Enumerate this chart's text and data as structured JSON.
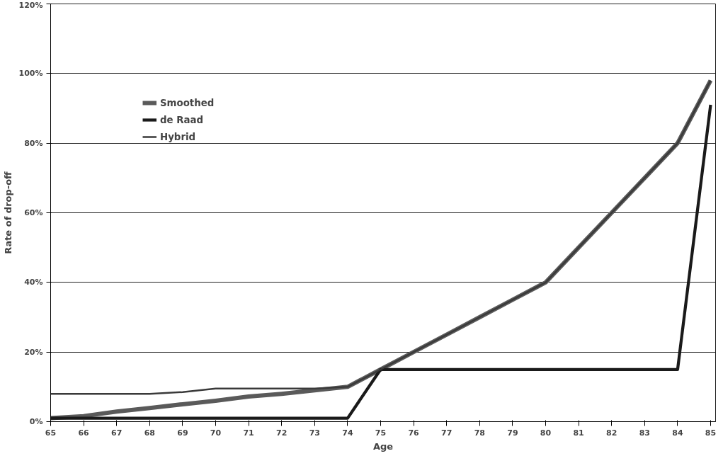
{
  "chart_data": {
    "type": "line",
    "xlabel": "Age",
    "ylabel": "Rate of drop-off",
    "categories": [
      "65",
      "66",
      "67",
      "68",
      "69",
      "70",
      "71",
      "72",
      "73",
      "74",
      "75",
      "76",
      "77",
      "78",
      "79",
      "80",
      "81",
      "82",
      "83",
      "84",
      "85"
    ],
    "series": [
      {
        "name": "Smoothed",
        "color": "#5a5a5a",
        "values": [
          1,
          1.6,
          2.9,
          3.9,
          5,
          6,
          7.2,
          8,
          9,
          10,
          15,
          20,
          25,
          30,
          35,
          40,
          50,
          60,
          70,
          80,
          98
        ]
      },
      {
        "name": "de Raad",
        "color": "#1a1a1a",
        "values": [
          1,
          1,
          1,
          1,
          1,
          1,
          1,
          1,
          1,
          1,
          15,
          15,
          15,
          15,
          15,
          15,
          15,
          15,
          15,
          15,
          91
        ]
      },
      {
        "name": "Hybrid",
        "color": "#3a3a3a",
        "values": [
          8,
          8,
          8,
          8,
          8.5,
          9.5,
          9.5,
          9.5,
          9.5,
          10,
          15,
          20,
          25,
          30,
          35,
          40,
          50,
          60,
          70,
          80,
          98
        ]
      }
    ],
    "ylim": [
      0,
      120
    ],
    "yticks": [
      {
        "value": 0,
        "label": "0%"
      },
      {
        "value": 20,
        "label": "20%"
      },
      {
        "value": 40,
        "label": "40%"
      },
      {
        "value": 60,
        "label": "60%"
      },
      {
        "value": 80,
        "label": "80%"
      },
      {
        "value": 100,
        "label": "100%"
      },
      {
        "value": 120,
        "label": "120%"
      }
    ],
    "grid": "y",
    "legend": "top left",
    "marker": "none",
    "line_style": "solid"
  }
}
